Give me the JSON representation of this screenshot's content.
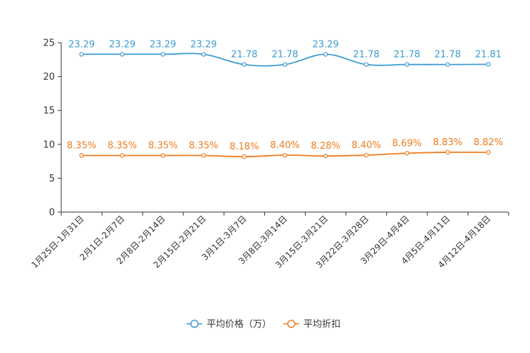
{
  "chart_data": {
    "type": "line",
    "categories": [
      "1月25日-1月31日",
      "2月1日-2月7日",
      "2月8日-2月14日",
      "2月15日-2月21日",
      "3月1日-3月7日",
      "3月8日-3月14日",
      "3月15日-3月21日",
      "3月22日-3月28日",
      "3月29日-4月4日",
      "4月5日-4月11日",
      "4月12日-4月18日"
    ],
    "series": [
      {
        "name": "平均价格（万）",
        "color": "#3d9bd0",
        "values": [
          23.29,
          23.29,
          23.29,
          23.29,
          21.78,
          21.78,
          23.29,
          21.78,
          21.78,
          21.78,
          21.81
        ],
        "labels": [
          "23.29",
          "23.29",
          "23.29",
          "23.29",
          "21.78",
          "21.78",
          "23.29",
          "21.78",
          "21.78",
          "21.78",
          "21.81"
        ]
      },
      {
        "name": "平均折扣",
        "color": "#f07c1e",
        "values": [
          8.35,
          8.35,
          8.35,
          8.35,
          8.18,
          8.4,
          8.28,
          8.4,
          8.69,
          8.83,
          8.82
        ],
        "labels": [
          "8.35%",
          "8.35%",
          "8.35%",
          "8.35%",
          "8.18%",
          "8.40%",
          "8.28%",
          "8.40%",
          "8.69%",
          "8.83%",
          "8.82%"
        ]
      }
    ],
    "yticks": [
      "0",
      "5",
      "10",
      "15",
      "20",
      "25"
    ],
    "ylim": [
      0,
      25
    ],
    "legend_position": "bottom-center"
  }
}
